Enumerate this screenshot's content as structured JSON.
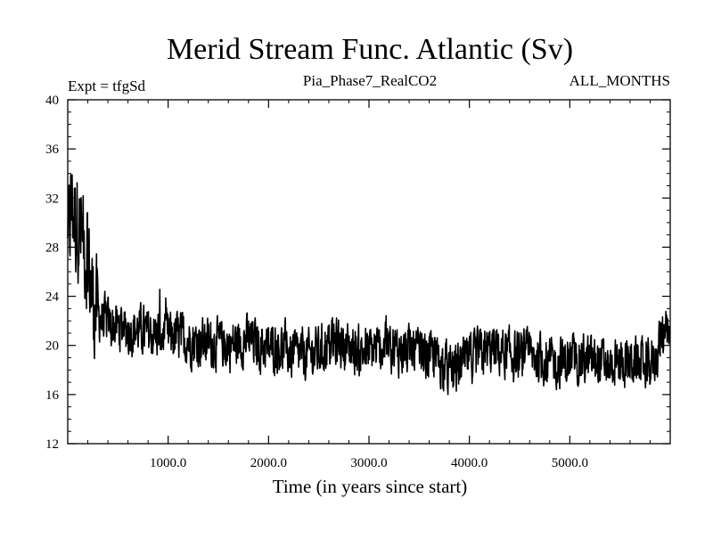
{
  "chart_data": {
    "type": "line",
    "title": "Merid Stream Func. Atlantic (Sv)",
    "subtitle_left": "Expt = tfgSd",
    "subtitle_center": "Pia_Phase7_RealCO2",
    "subtitle_right": "ALL_MONTHS",
    "xlabel": "Time (in years since start)",
    "ylabel": "",
    "xlim": [
      0,
      6000
    ],
    "ylim": [
      12,
      40
    ],
    "xticks": [
      1000,
      2000,
      3000,
      4000,
      5000
    ],
    "xtick_labels": [
      "1000.0",
      "2000.0",
      "3000.0",
      "4000.0",
      "5000.0"
    ],
    "yticks": [
      12,
      16,
      20,
      24,
      28,
      32,
      36,
      40
    ],
    "ytick_labels": [
      "12",
      "16",
      "20",
      "24",
      "28",
      "32",
      "36",
      "40"
    ],
    "line_color": "#000000",
    "series": [
      {
        "name": "Merid Stream Func. Atlantic",
        "x": [
          0,
          20,
          40,
          60,
          80,
          100,
          130,
          160,
          200,
          250,
          300,
          350,
          400,
          500,
          600,
          700,
          800,
          900,
          1000,
          1100,
          1200,
          1300,
          1400,
          1500,
          1600,
          1700,
          1800,
          1900,
          2000,
          2100,
          2200,
          2300,
          2400,
          2500,
          2600,
          2700,
          2800,
          2900,
          3000,
          3100,
          3200,
          3300,
          3400,
          3500,
          3600,
          3700,
          3800,
          3850,
          3900,
          4000,
          4100,
          4200,
          4300,
          4400,
          4500,
          4600,
          4700,
          4800,
          4900,
          5000,
          5100,
          5200,
          5300,
          5400,
          5500,
          5600,
          5700,
          5800,
          5850,
          5900,
          5950,
          6000
        ],
        "values": [
          27.5,
          30.0,
          31.5,
          31.0,
          30.0,
          30.5,
          29.0,
          28.5,
          27.0,
          23.5,
          22.5,
          22.0,
          21.8,
          21.5,
          21.3,
          21.2,
          21.0,
          21.0,
          20.8,
          20.7,
          20.5,
          20.3,
          20.2,
          20.1,
          20.0,
          20.2,
          20.5,
          20.0,
          19.8,
          19.9,
          19.5,
          19.3,
          19.2,
          19.5,
          20.0,
          20.3,
          19.8,
          19.5,
          19.6,
          19.7,
          20.0,
          19.6,
          19.5,
          19.4,
          19.2,
          18.8,
          18.0,
          17.8,
          18.3,
          19.0,
          19.3,
          19.6,
          19.5,
          19.3,
          19.0,
          19.2,
          19.0,
          18.8,
          18.5,
          18.8,
          18.9,
          18.7,
          18.6,
          18.5,
          18.6,
          18.7,
          18.5,
          18.3,
          19.0,
          20.5,
          21.2,
          20.0
        ],
        "noise_amplitude": 1.8
      }
    ]
  }
}
